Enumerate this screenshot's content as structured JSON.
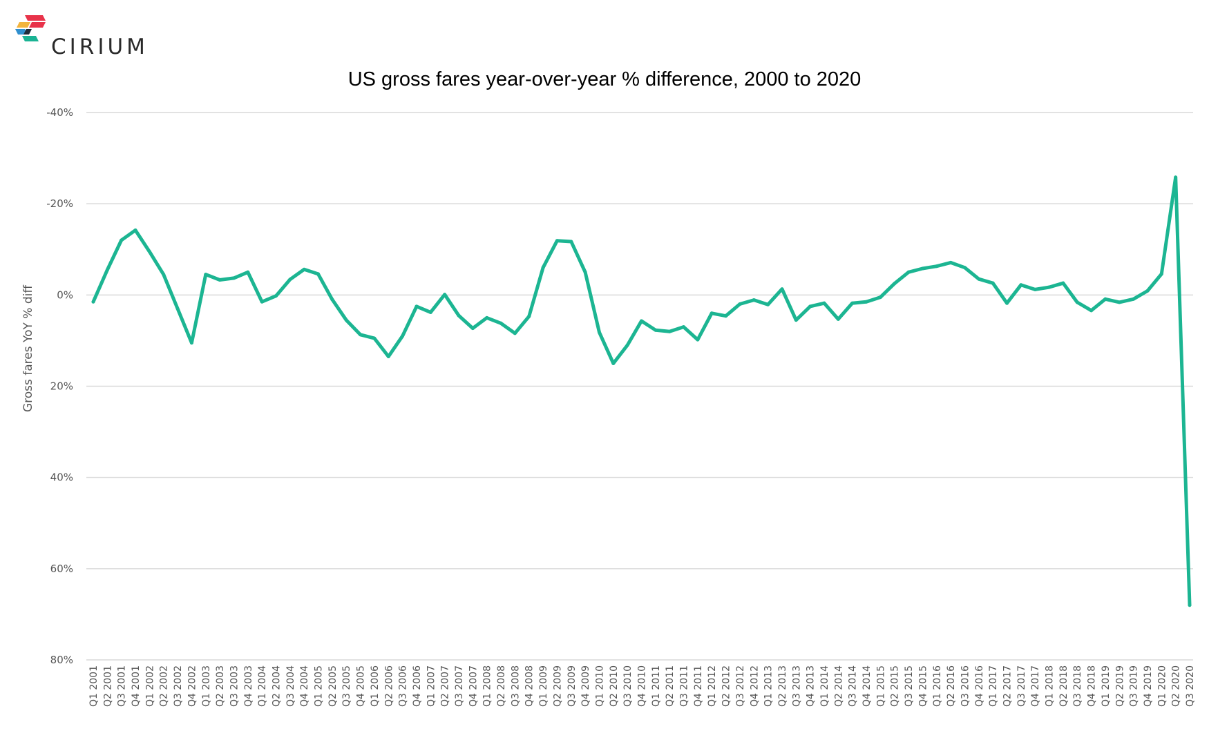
{
  "brand": {
    "name": "CIRIUM",
    "colors": [
      "#e8334a",
      "#f3b43e",
      "#2f8fcf",
      "#1ab394",
      "#1f2b3a"
    ]
  },
  "chart_data": {
    "type": "line",
    "title": "US gross fares year-over-year % difference, 2000 to 2020",
    "xlabel": "",
    "ylabel": "Gross fares YoY % diff",
    "y_axis_inverted": true,
    "ylim": [
      -40,
      80
    ],
    "yticks": [
      -40,
      -20,
      0,
      20,
      40,
      60,
      80
    ],
    "ytick_labels": [
      "-40%",
      "-20%",
      "0%",
      "20%",
      "40%",
      "60%",
      "80%"
    ],
    "grid": "horizontal",
    "line_color": "#1cb592",
    "categories": [
      "Q1 2001",
      "Q2 2001",
      "Q3 2001",
      "Q4 2001",
      "Q1 2002",
      "Q2 2002",
      "Q3 2002",
      "Q4 2002",
      "Q1 2003",
      "Q2 2003",
      "Q3 2003",
      "Q4 2003",
      "Q1 2004",
      "Q2 2004",
      "Q3 2004",
      "Q4 2004",
      "Q1 2005",
      "Q2 2005",
      "Q3 2005",
      "Q4 2005",
      "Q1 2006",
      "Q2 2006",
      "Q3 2006",
      "Q4 2006",
      "Q1 2007",
      "Q2 2007",
      "Q3 2007",
      "Q4 2007",
      "Q1 2008",
      "Q2 2008",
      "Q3 2008",
      "Q4 2008",
      "Q1 2009",
      "Q2 2009",
      "Q3 2009",
      "Q4 2009",
      "Q1 2010",
      "Q2 2010",
      "Q3 2010",
      "Q4 2010",
      "Q1 2011",
      "Q2 2011",
      "Q3 2011",
      "Q4 2011",
      "Q1 2012",
      "Q2 2012",
      "Q3 2012",
      "Q4 2012",
      "Q1 2013",
      "Q2 2013",
      "Q3 2013",
      "Q4 2013",
      "Q1 2014",
      "Q2 2014",
      "Q3 2014",
      "Q4 2014",
      "Q1 2015",
      "Q2 2015",
      "Q3 2015",
      "Q4 2015",
      "Q1 2016",
      "Q2 2016",
      "Q3 2016",
      "Q4 2016",
      "Q1 2017",
      "Q2 2017",
      "Q3 2017",
      "Q4 2017",
      "Q1 2018",
      "Q2 2018",
      "Q3 2018",
      "Q4 2018",
      "Q1 2019",
      "Q2 2019",
      "Q3 2019",
      "Q4 2019",
      "Q1 2020",
      "Q2 2020",
      "Q3 2020"
    ],
    "series": [
      {
        "values": [
          1.5,
          -5.5,
          -12.0,
          -14.2,
          -9.5,
          -4.5,
          3.0,
          10.5,
          -4.5,
          -3.3,
          -3.7,
          -5.0,
          1.5,
          0.2,
          -3.4,
          -5.6,
          -4.6,
          1.0,
          5.5,
          8.7,
          9.5,
          13.5,
          9.0,
          2.5,
          3.8,
          -0.1,
          4.5,
          7.3,
          5.0,
          6.2,
          8.4,
          4.7,
          -6.0,
          -11.9,
          -11.7,
          -5.0,
          8.2,
          15.0,
          11.0,
          5.7,
          7.7,
          8.0,
          7.0,
          9.8,
          4.0,
          4.6,
          2.0,
          1.1,
          2.1,
          -1.3,
          5.5,
          2.5,
          1.8,
          5.3,
          1.8,
          1.5,
          0.5,
          -2.5,
          -5.0,
          -5.8,
          -6.3,
          -7.1,
          -6.0,
          -3.5,
          -2.6,
          1.8,
          -2.2,
          -1.2,
          -1.7,
          -2.6,
          1.6,
          3.4,
          0.9,
          1.6,
          0.9,
          -0.9,
          -4.6,
          -25.8,
          68.0
        ]
      }
    ]
  }
}
